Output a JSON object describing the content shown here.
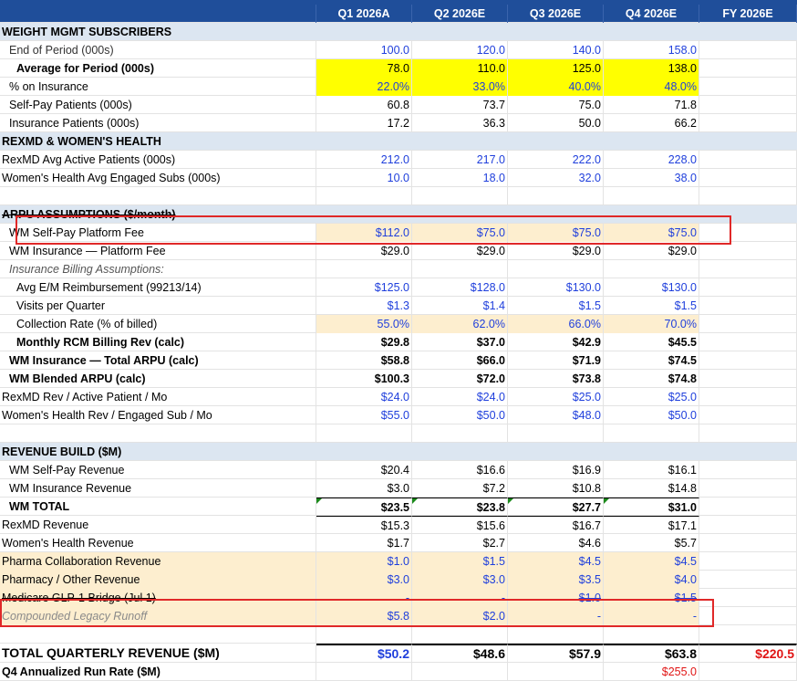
{
  "header": {
    "label": "",
    "cols": [
      "Q1 2026A",
      "Q2 2026E",
      "Q3 2026E",
      "Q4 2026E",
      "FY 2026E"
    ]
  },
  "s1": {
    "title": "WEIGHT MGMT SUBSCRIBERS"
  },
  "r1": {
    "label": "End of Period (000s)",
    "v": [
      "100.0",
      "120.0",
      "140.0",
      "158.0"
    ]
  },
  "r2": {
    "label": "Average for Period (000s)",
    "v": [
      "78.0",
      "110.0",
      "125.0",
      "138.0"
    ]
  },
  "r3": {
    "label": "% on Insurance",
    "v": [
      "22.0%",
      "33.0%",
      "40.0%",
      "48.0%"
    ]
  },
  "r4": {
    "label": "Self-Pay Patients (000s)",
    "v": [
      "60.8",
      "73.7",
      "75.0",
      "71.8"
    ]
  },
  "r5": {
    "label": "Insurance Patients (000s)",
    "v": [
      "17.2",
      "36.3",
      "50.0",
      "66.2"
    ]
  },
  "s2": {
    "title": "REXMD & WOMEN'S HEALTH"
  },
  "r6": {
    "label": "RexMD Avg Active Patients (000s)",
    "v": [
      "212.0",
      "217.0",
      "222.0",
      "228.0"
    ]
  },
  "r7": {
    "label": "Women's Health Avg Engaged Subs (000s)",
    "v": [
      "10.0",
      "18.0",
      "32.0",
      "38.0"
    ]
  },
  "s3": {
    "title": "ARPU ASSUMPTIONS ($/month)"
  },
  "r8": {
    "label": "WM Self-Pay Platform Fee",
    "v": [
      "$112.0",
      "$75.0",
      "$75.0",
      "$75.0"
    ]
  },
  "r9": {
    "label": "WM Insurance — Platform Fee",
    "v": [
      "$29.0",
      "$29.0",
      "$29.0",
      "$29.0"
    ]
  },
  "r10": {
    "label": "Insurance Billing Assumptions:"
  },
  "r11": {
    "label": "Avg E/M Reimbursement (99213/14)",
    "v": [
      "$125.0",
      "$128.0",
      "$130.0",
      "$130.0"
    ]
  },
  "r12": {
    "label": "Visits per Quarter",
    "v": [
      "$1.3",
      "$1.4",
      "$1.5",
      "$1.5"
    ]
  },
  "r13": {
    "label": "Collection Rate (% of billed)",
    "v": [
      "55.0%",
      "62.0%",
      "66.0%",
      "70.0%"
    ]
  },
  "r14": {
    "label": "Monthly RCM Billing Rev (calc)",
    "v": [
      "$29.8",
      "$37.0",
      "$42.9",
      "$45.5"
    ]
  },
  "r15": {
    "label": "WM Insurance — Total ARPU (calc)",
    "v": [
      "$58.8",
      "$66.0",
      "$71.9",
      "$74.5"
    ]
  },
  "r16": {
    "label": "WM Blended ARPU (calc)",
    "v": [
      "$100.3",
      "$72.0",
      "$73.8",
      "$74.8"
    ]
  },
  "r17": {
    "label": "RexMD Rev / Active Patient / Mo",
    "v": [
      "$24.0",
      "$24.0",
      "$25.0",
      "$25.0"
    ]
  },
  "r18": {
    "label": "Women's Health Rev / Engaged Sub / Mo",
    "v": [
      "$55.0",
      "$50.0",
      "$48.0",
      "$50.0"
    ]
  },
  "s4": {
    "title": "REVENUE BUILD ($M)"
  },
  "r19": {
    "label": "WM Self-Pay Revenue",
    "v": [
      "$20.4",
      "$16.6",
      "$16.9",
      "$16.1"
    ]
  },
  "r20": {
    "label": "WM Insurance Revenue",
    "v": [
      "$3.0",
      "$7.2",
      "$10.8",
      "$14.8"
    ]
  },
  "r21": {
    "label": "WM TOTAL",
    "v": [
      "$23.5",
      "$23.8",
      "$27.7",
      "$31.0"
    ]
  },
  "r22": {
    "label": "RexMD Revenue",
    "v": [
      "$15.3",
      "$15.6",
      "$16.7",
      "$17.1"
    ]
  },
  "r23": {
    "label": "Women's Health Revenue",
    "v": [
      "$1.7",
      "$2.7",
      "$4.6",
      "$5.7"
    ]
  },
  "r24": {
    "label": "Pharma Collaboration Revenue",
    "v": [
      "$1.0",
      "$1.5",
      "$4.5",
      "$4.5"
    ]
  },
  "r25": {
    "label": "Pharmacy / Other Revenue",
    "v": [
      "$3.0",
      "$3.0",
      "$3.5",
      "$4.0"
    ]
  },
  "r26": {
    "label": "Medicare GLP-1 Bridge (Jul 1)",
    "v": [
      "-",
      "-",
      "$1.0",
      "$1.5"
    ]
  },
  "r27": {
    "label": "Compounded Legacy Runoff",
    "v": [
      "$5.8",
      "$2.0",
      "-",
      "-"
    ]
  },
  "r28": {
    "label": "TOTAL QUARTERLY REVENUE ($M)",
    "v": [
      "$50.2",
      "$48.6",
      "$57.9",
      "$63.8",
      "$220.5"
    ]
  },
  "r29": {
    "label": "Q4 Annualized Run Rate ($M)",
    "v": [
      "",
      "",
      "",
      "$255.0"
    ]
  }
}
